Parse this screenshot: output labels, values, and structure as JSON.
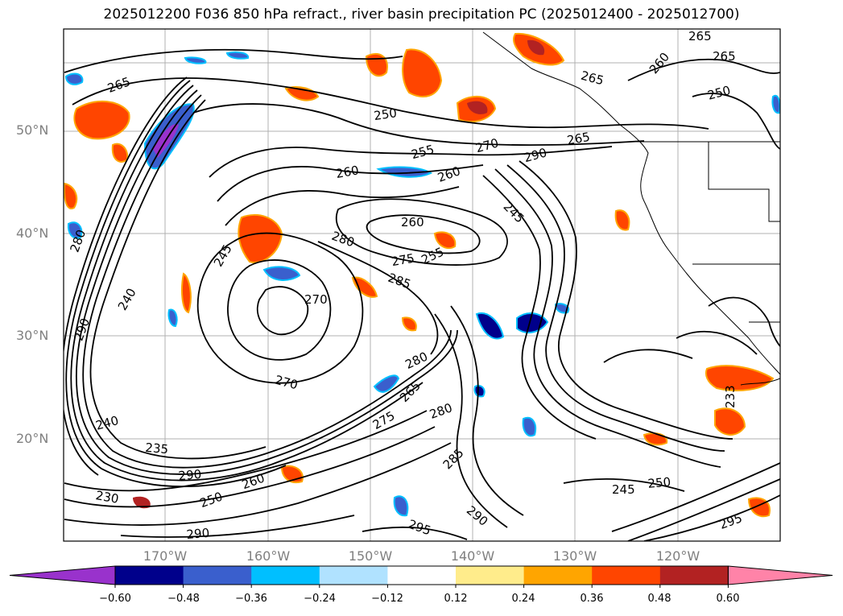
{
  "title": "2025012200 F036 850 hPa refract., river basin precipitation PC (2025012400 - 2025012700)",
  "map": {
    "lat_labels": [
      "50°N",
      "40°N",
      "30°N",
      "20°N"
    ],
    "lon_labels": [
      "170°W",
      "160°W",
      "150°W",
      "140°W",
      "130°W",
      "120°W"
    ],
    "contour_labels": [
      "265",
      "250",
      "255",
      "260",
      "270",
      "280",
      "275",
      "285",
      "245",
      "240",
      "290",
      "235",
      "230",
      "295",
      "280",
      "270",
      "265",
      "260",
      "250",
      "245",
      "255",
      "265",
      "270",
      "275",
      "280",
      "285",
      "290",
      "295"
    ],
    "colors": {
      "frame": "#000000",
      "grid": "#b0b0b0",
      "contour": "#000000",
      "coast": "#000000"
    }
  },
  "colorbar": {
    "ticks": [
      "−0.60",
      "−0.48",
      "−0.36",
      "−0.24",
      "−0.12",
      "0.12",
      "0.24",
      "0.36",
      "0.48",
      "0.60"
    ],
    "colors": [
      "#9932cc",
      "#00008b",
      "#3a5fcd",
      "#00bfff",
      "#b0e2ff",
      "#ffffff",
      "#ffec8b",
      "#ffa500",
      "#ff4500",
      "#b22222",
      "#ff83a8",
      "#ff83a8"
    ]
  }
}
